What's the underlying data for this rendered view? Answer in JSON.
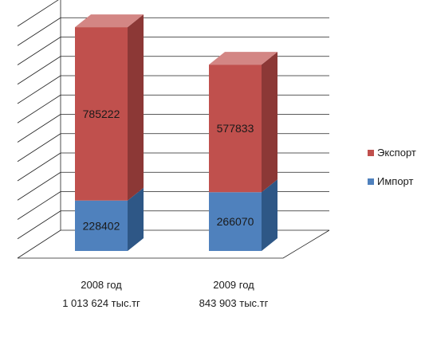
{
  "chart_data": {
    "type": "bar",
    "stacked": true,
    "three_d": true,
    "categories": [
      "2008 год",
      "2009 год"
    ],
    "category_sublabels": [
      "1 013 624 тыс.тг",
      "843 903 тыс.тг"
    ],
    "series": [
      {
        "name": "Импорт",
        "values": [
          228402,
          266070
        ]
      },
      {
        "name": "Экспорт",
        "values": [
          785222,
          577833
        ]
      }
    ],
    "ylim": [
      0,
      1050000
    ],
    "y_gridline_step": 87500,
    "grid": true,
    "tick_labels_visible": false,
    "legend_position": "right",
    "legend_order": [
      "Экспорт",
      "Импорт"
    ],
    "data_labels": true
  },
  "colors": {
    "Экспорт": {
      "front": "#c0504d",
      "side": "#8c3836",
      "top": "#d38684"
    },
    "Импорт": {
      "front": "#4f81bd",
      "side": "#2e5786",
      "top": "#8eb0d8"
    },
    "grid": "#222222",
    "text": "#1a1a1a"
  }
}
